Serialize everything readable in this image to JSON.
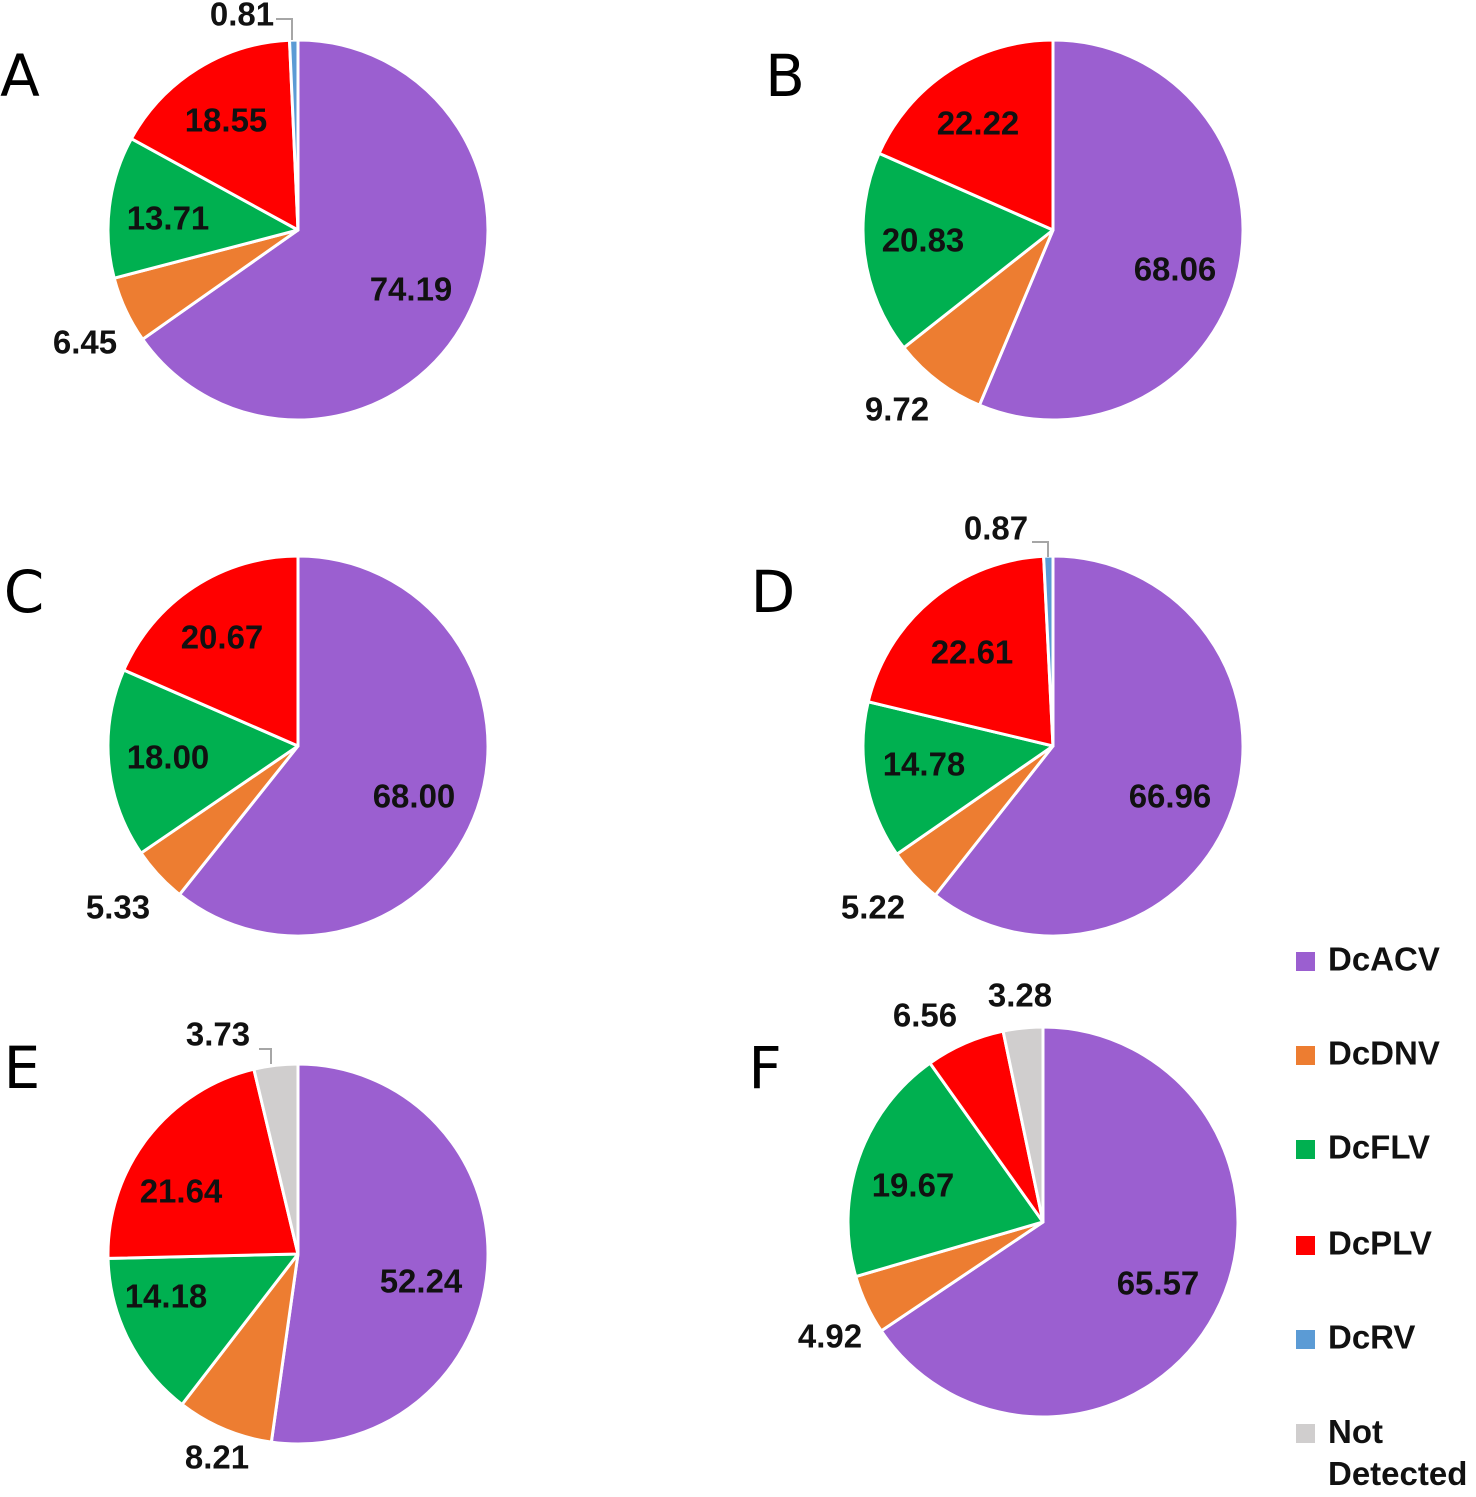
{
  "legend": {
    "items": [
      {
        "key": "DcACV",
        "label": "DcACV",
        "color": "#9b5fd0"
      },
      {
        "key": "DcDNV",
        "label": "DcDNV",
        "color": "#ed7d31"
      },
      {
        "key": "DcFLV",
        "label": "DcFLV",
        "color": "#00b050"
      },
      {
        "key": "DcPLV",
        "label": "DcPLV",
        "color": "#ff0000"
      },
      {
        "key": "DcRV",
        "label": "DcRV",
        "color": "#5b9bd5"
      },
      {
        "key": "ND",
        "label": "Not Detected",
        "label_lines": [
          "Not",
          "Detected"
        ],
        "color": "#d0cece"
      }
    ]
  },
  "chart_data": [
    {
      "type": "pie",
      "panel": "A",
      "slices": [
        {
          "label": "DcACV",
          "value": 74.19,
          "display": "74.19"
        },
        {
          "label": "DcDNV",
          "value": 6.45,
          "display": "6.45"
        },
        {
          "label": "DcFLV",
          "value": 13.71,
          "display": "13.71"
        },
        {
          "label": "DcPLV",
          "value": 18.55,
          "display": "18.55"
        },
        {
          "label": "DcRV",
          "value": 0.81,
          "display": "0.81"
        }
      ]
    },
    {
      "type": "pie",
      "panel": "B",
      "slices": [
        {
          "label": "DcACV",
          "value": 68.06,
          "display": "68.06"
        },
        {
          "label": "DcDNV",
          "value": 9.72,
          "display": "9.72"
        },
        {
          "label": "DcFLV",
          "value": 20.83,
          "display": "20.83"
        },
        {
          "label": "DcPLV",
          "value": 22.22,
          "display": "22.22"
        }
      ]
    },
    {
      "type": "pie",
      "panel": "C",
      "slices": [
        {
          "label": "DcACV",
          "value": 68.0,
          "display": "68.00"
        },
        {
          "label": "DcDNV",
          "value": 5.33,
          "display": "5.33"
        },
        {
          "label": "DcFLV",
          "value": 18.0,
          "display": "18.00"
        },
        {
          "label": "DcPLV",
          "value": 20.67,
          "display": "20.67"
        }
      ]
    },
    {
      "type": "pie",
      "panel": "D",
      "slices": [
        {
          "label": "DcACV",
          "value": 66.96,
          "display": "66.96"
        },
        {
          "label": "DcDNV",
          "value": 5.22,
          "display": "5.22"
        },
        {
          "label": "DcFLV",
          "value": 14.78,
          "display": "14.78"
        },
        {
          "label": "DcPLV",
          "value": 22.61,
          "display": "22.61"
        },
        {
          "label": "DcRV",
          "value": 0.87,
          "display": "0.87"
        }
      ]
    },
    {
      "type": "pie",
      "panel": "E",
      "slices": [
        {
          "label": "DcACV",
          "value": 52.24,
          "display": "52.24"
        },
        {
          "label": "DcDNV",
          "value": 8.21,
          "display": "8.21"
        },
        {
          "label": "DcFLV",
          "value": 14.18,
          "display": "14.18"
        },
        {
          "label": "DcPLV",
          "value": 21.64,
          "display": "21.64"
        },
        {
          "label": "Not Detected",
          "value": 3.73,
          "display": "3.73"
        }
      ]
    },
    {
      "type": "pie",
      "panel": "F",
      "slices": [
        {
          "label": "DcACV",
          "value": 65.57,
          "display": "65.57"
        },
        {
          "label": "DcDNV",
          "value": 4.92,
          "display": "4.92"
        },
        {
          "label": "DcFLV",
          "value": 19.67,
          "display": "19.67"
        },
        {
          "label": "DcPLV",
          "value": 6.56,
          "display": "6.56"
        },
        {
          "label": "Not Detected",
          "value": 3.28,
          "display": "3.28"
        }
      ]
    }
  ]
}
